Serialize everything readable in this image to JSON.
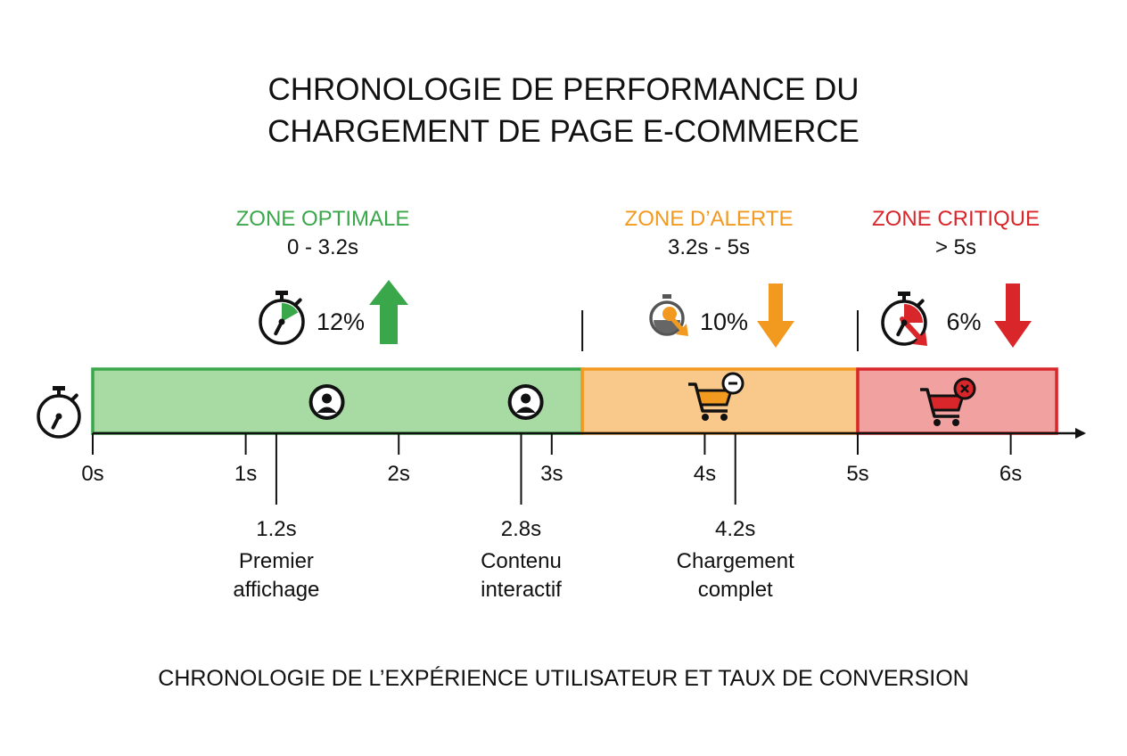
{
  "title": {
    "line1": "CHRONOLOGIE DE PERFORMANCE DU",
    "line2": "CHARGEMENT DE PAGE E-COMMERCE"
  },
  "zones": [
    {
      "name": "ZONE OPTIMALE",
      "range": "0 - 3.2s",
      "start": 0,
      "end": 3.2,
      "conversion": "12%",
      "trend": "up",
      "color": "#3aa84a",
      "fill": "#a8dba4",
      "border": "#3aa84a",
      "icon": "stopwatch-icon",
      "bar_icons": [
        "user-icon",
        "user-icon"
      ]
    },
    {
      "name": "ZONE D’ALERTE",
      "range": "3.2s - 5s",
      "start": 3.2,
      "end": 5,
      "conversion": "10%",
      "trend": "down",
      "color": "#f29a1f",
      "fill": "#f9c98c",
      "border": "#f29a1f",
      "icon": "slow-clock-icon",
      "bar_icons": [
        "cart-minus-icon"
      ]
    },
    {
      "name": "ZONE CRITIQUE",
      "range": "> 5s",
      "start": 5,
      "end": 6.3,
      "conversion": "6%",
      "trend": "down",
      "color": "#d9262b",
      "fill": "#f2a1a1",
      "border": "#d9262b",
      "icon": "stopwatch-alert-icon",
      "bar_icons": [
        "cart-cancel-icon"
      ]
    }
  ],
  "axis": {
    "ticks": [
      {
        "value": 0,
        "label": "0s"
      },
      {
        "value": 1,
        "label": "1s"
      },
      {
        "value": 2,
        "label": "2s"
      },
      {
        "value": 3,
        "label": "3s"
      },
      {
        "value": 4,
        "label": "4s"
      },
      {
        "value": 5,
        "label": "5s"
      },
      {
        "value": 6,
        "label": "6s"
      }
    ],
    "min": 0,
    "max": 6.3,
    "start_icon": "stopwatch-icon"
  },
  "events": [
    {
      "time": 1.2,
      "time_label": "1.2s",
      "line1": "Premier",
      "line2": "affichage"
    },
    {
      "time": 2.8,
      "time_label": "2.8s",
      "line1": "Contenu",
      "line2": "interactif"
    },
    {
      "time": 4.2,
      "time_label": "4.2s",
      "line1": "Chargement",
      "line2": "complet"
    }
  ],
  "footer": "CHRONOLOGIE DE L’EXPÉRIENCE UTILISATEUR ET TAUX DE CONVERSION"
}
